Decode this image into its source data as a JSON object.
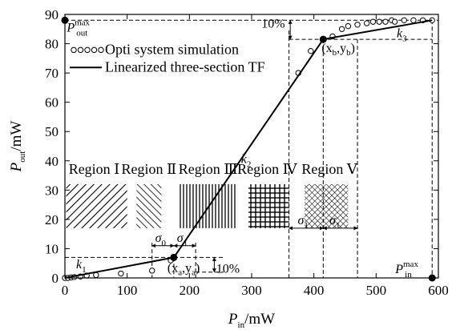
{
  "chart_data": {
    "type": "line",
    "xlabel": {
      "base": "P",
      "sub": "in",
      "unit": "/mW"
    },
    "ylabel": {
      "base": "P",
      "sub": "out",
      "unit": "/mW"
    },
    "xlim": [
      0,
      600
    ],
    "ylim": [
      0,
      90
    ],
    "xticks": [
      0,
      100,
      200,
      300,
      400,
      500,
      600
    ],
    "yticks": [
      0,
      10,
      20,
      30,
      40,
      50,
      60,
      70,
      80,
      90
    ],
    "grid": false,
    "legend_position": "upper-left",
    "series": [
      {
        "name": "Opti system simulation",
        "kind": "scatter",
        "marker": "open-circle",
        "x": [
          0,
          5,
          10,
          15,
          25,
          35,
          50,
          90,
          140,
          170,
          175,
          375,
          395,
          430,
          445,
          455,
          470,
          485,
          495,
          505,
          515,
          525,
          530,
          545,
          560,
          575,
          590
        ],
        "y": [
          0,
          0,
          0.2,
          0.3,
          0.5,
          0.8,
          1.0,
          1.5,
          2.5,
          6.0,
          7.0,
          70,
          77.5,
          82.5,
          85,
          86,
          86.5,
          87,
          87.5,
          87.5,
          87.5,
          88,
          87.5,
          88,
          88,
          88,
          88
        ]
      },
      {
        "name": "Linearized three-section TF",
        "kind": "line",
        "x": [
          0,
          175,
          415,
          590
        ],
        "y": [
          0,
          7.0,
          81.5,
          88
        ]
      }
    ],
    "reference_lines": {
      "ya": 7.0,
      "yb": 81.5,
      "xa": 175,
      "xb": 415,
      "pout_max": 88,
      "pin_max": 590,
      "region_boundaries": [
        140,
        210,
        360,
        470
      ],
      "y_10pct_low": 2.0,
      "y_10pct_high": 88
    },
    "annotations": {
      "pout_max": {
        "base": "P",
        "sub": "out",
        "sup": "max"
      },
      "pin_max": {
        "base": "P",
        "sub": "in",
        "sup": "max"
      },
      "ten_percent_top": "10%",
      "ten_percent_bottom": "10%",
      "point_b": {
        "open": "(x",
        "sub1": "b",
        "comma": ",y",
        "sub2": "b",
        "close": ")"
      },
      "point_a": {
        "open": "(x",
        "sub1": "a",
        "comma": ",y",
        "sub2": "a",
        "close": ")"
      },
      "k1": {
        "base": "k",
        "sub": "1"
      },
      "k2": {
        "base": "k",
        "sub": "2"
      },
      "k3": {
        "base": "k",
        "sub": "3"
      },
      "sigma0": {
        "base": "σ",
        "sub": "0"
      },
      "sigma1": {
        "base": "σ",
        "sub": "1"
      }
    },
    "regions": [
      "Region Ⅰ",
      "Region Ⅱ",
      "Region Ⅲ",
      "Region Ⅳ",
      "Region Ⅴ"
    ]
  }
}
